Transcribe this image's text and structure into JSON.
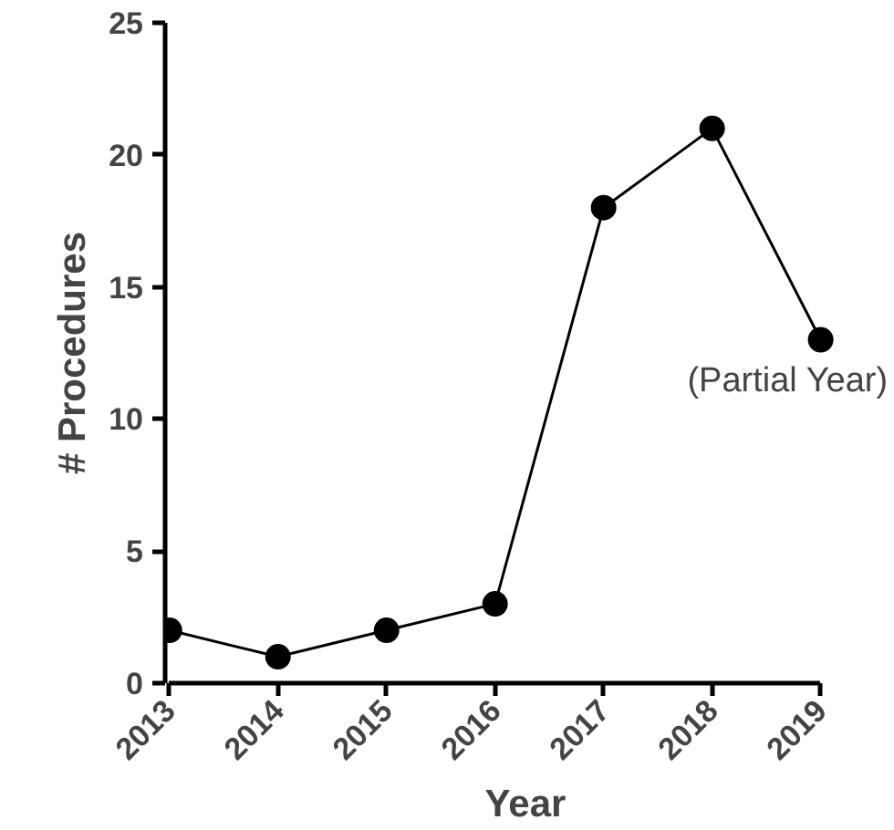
{
  "chart_data": {
    "type": "line",
    "xlabel": "Year",
    "ylabel": "# Procedures",
    "categories": [
      "2013",
      "2014",
      "2015",
      "2016",
      "2017",
      "2018",
      "2019"
    ],
    "series": [
      {
        "color": "#000000",
        "values": [
          2,
          1,
          2,
          3,
          18,
          21,
          13
        ]
      }
    ],
    "ylim": [
      0,
      25
    ],
    "yticks": [
      0,
      5,
      10,
      15,
      20,
      25
    ],
    "grid": false,
    "marker": "circle",
    "line_style": "solid",
    "annotations": [
      {
        "text": "(Partial Year)",
        "x": "2019",
        "y": 13
      }
    ]
  }
}
